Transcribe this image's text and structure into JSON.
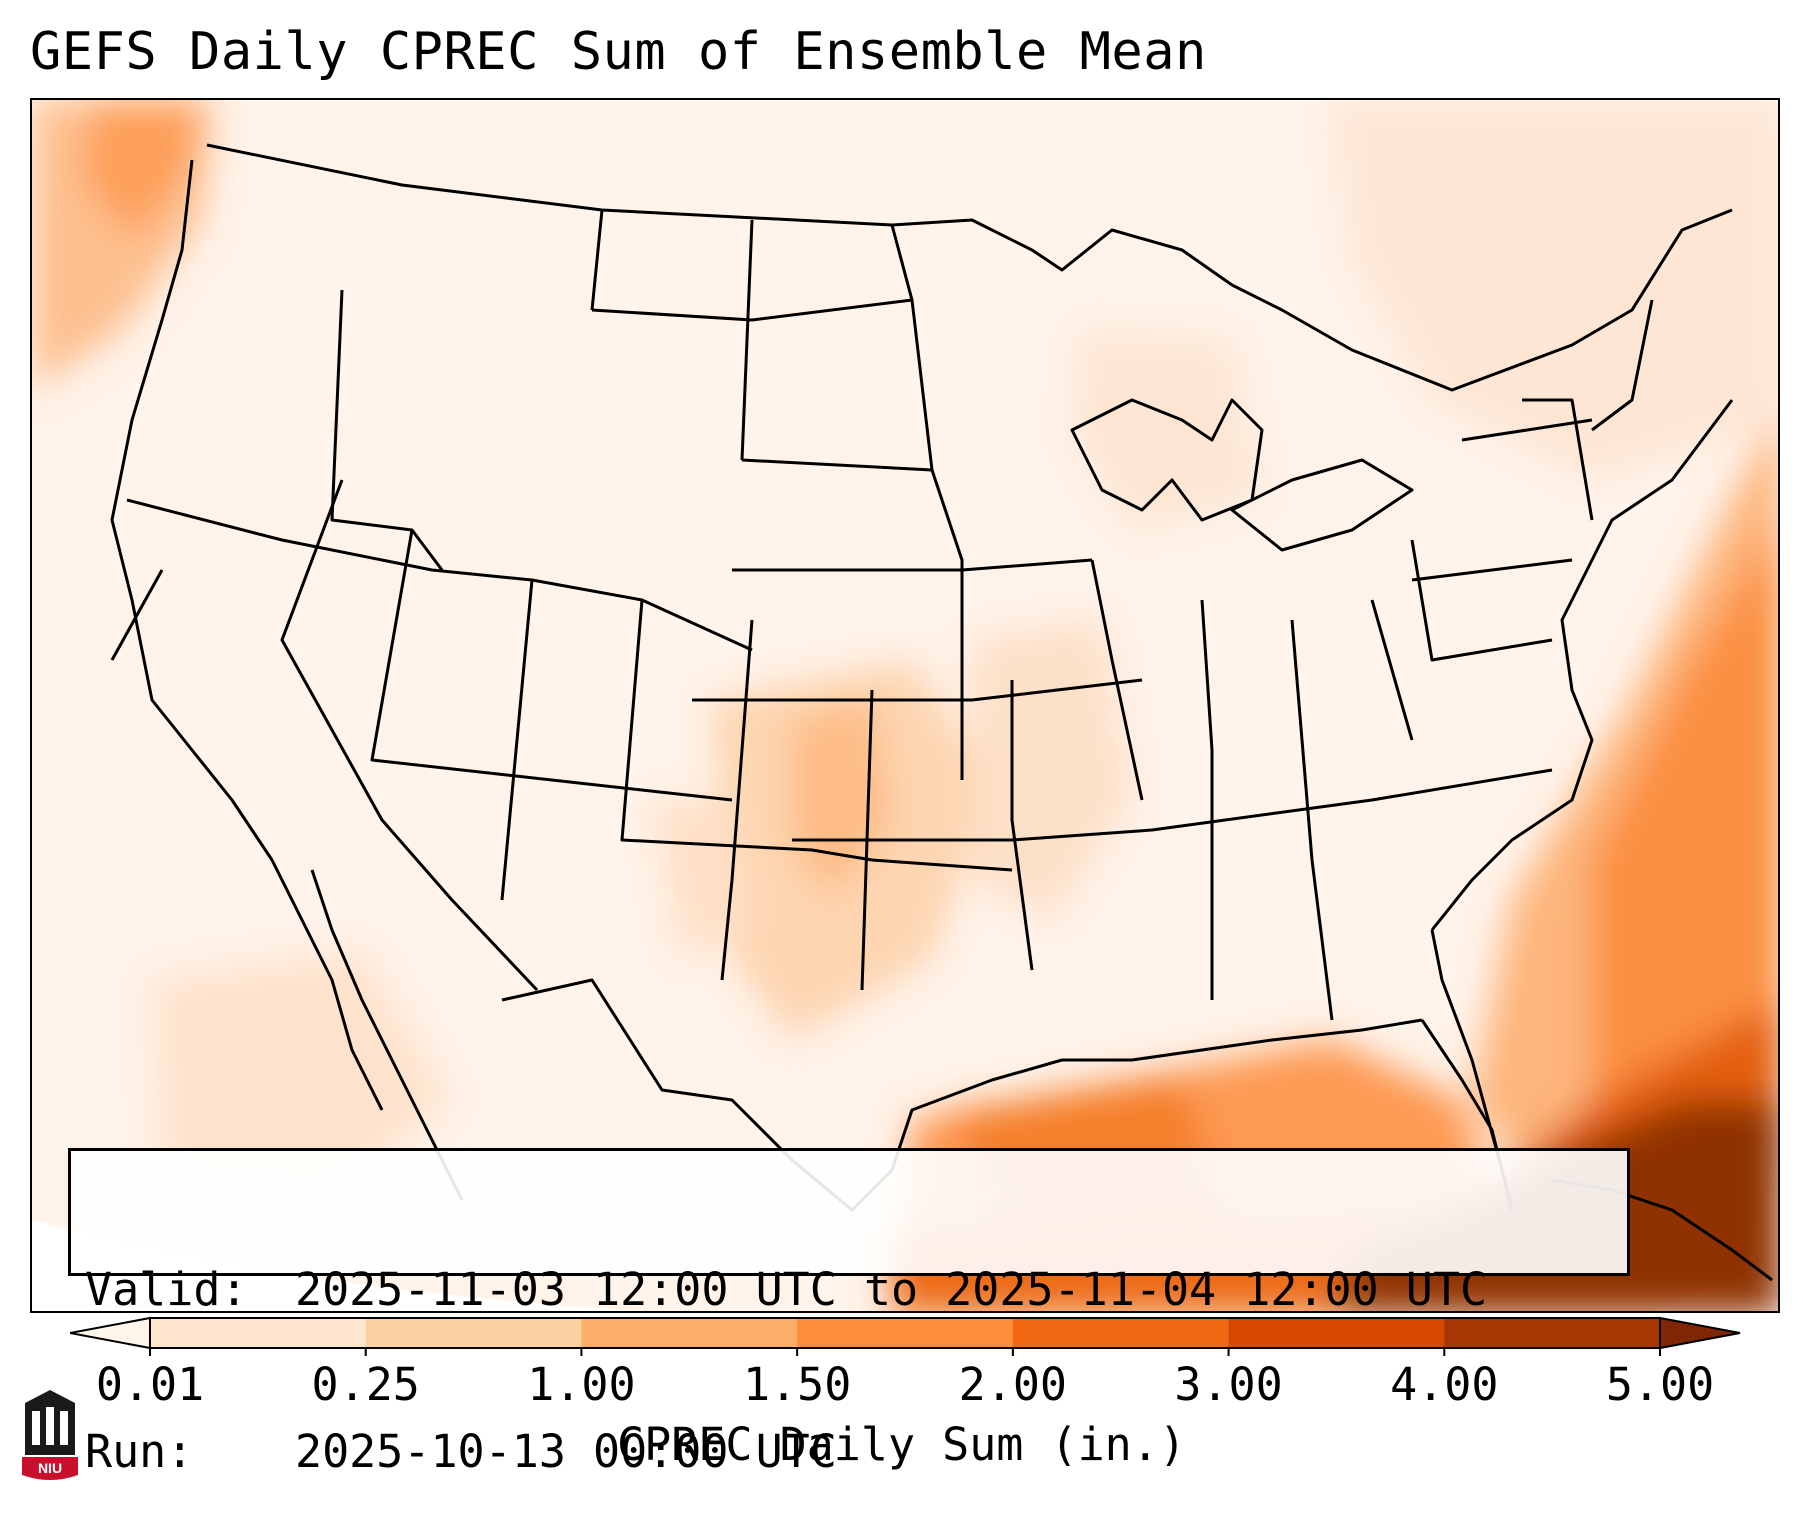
{
  "title": "GEFS Daily CPREC Sum of Ensemble Mean",
  "info": {
    "valid_label": "Valid:",
    "valid_value": "2025-11-03 12:00 UTC to 2025-11-04 12:00 UTC",
    "run_label": "Run:",
    "run_value": "2025-10-13 00:00 UTC"
  },
  "colorbar": {
    "title": "CPREC Daily Sum (in.)",
    "ticks": [
      "0.01",
      "0.25",
      "1.00",
      "1.50",
      "2.00",
      "3.00",
      "4.00",
      "5.00"
    ],
    "colors": [
      "#fff5eb",
      "#fee6ce",
      "#fdd0a2",
      "#fdae6b",
      "#fd8d3c",
      "#f16913",
      "#d94801",
      "#a63603",
      "#7f2704"
    ]
  },
  "logo": {
    "text": "NIU",
    "icon": "university-building-icon"
  }
}
